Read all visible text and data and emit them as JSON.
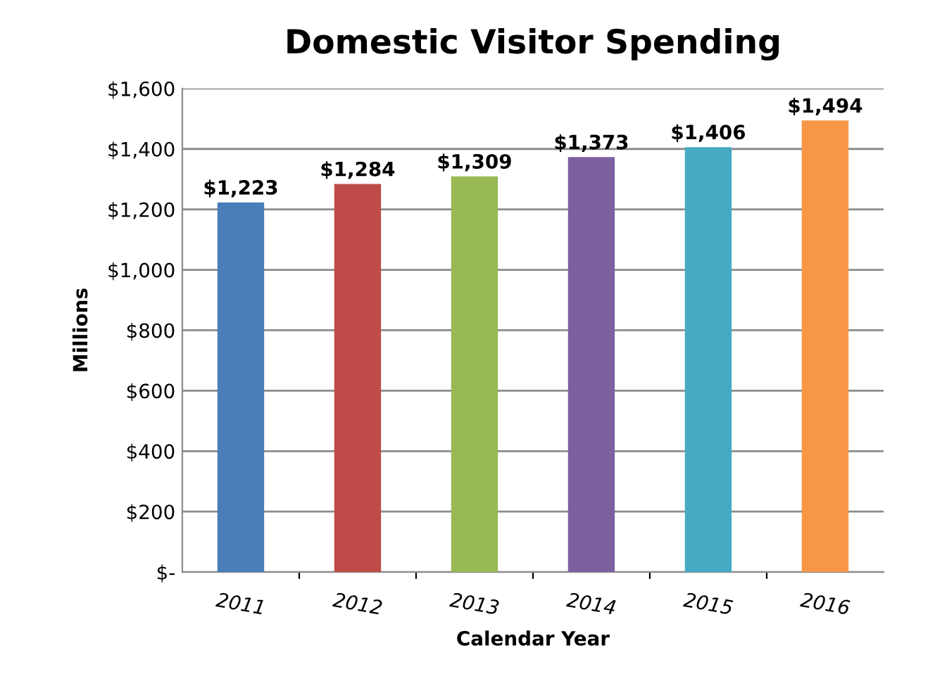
{
  "chart_data": {
    "type": "bar",
    "title": "Domestic Visitor Spending",
    "xlabel": "Calendar Year",
    "ylabel": "Millions",
    "categories": [
      "2011",
      "2012",
      "2013",
      "2014",
      "2015",
      "2016"
    ],
    "values": [
      1223,
      1284,
      1309,
      1373,
      1406,
      1494
    ],
    "colors": [
      "#4a7ebb",
      "#be4b48",
      "#98b954",
      "#7d60a0",
      "#46aac5",
      "#f79646"
    ],
    "value_labels": [
      "$1,223",
      "$1,284",
      "$1,309",
      "$1,373",
      "$1,406",
      "$1,494"
    ],
    "ylim": [
      0,
      1600
    ],
    "yticks": [
      {
        "value": 0,
        "label": "$-"
      },
      {
        "value": 200,
        "label": "$200"
      },
      {
        "value": 400,
        "label": "$400"
      },
      {
        "value": 600,
        "label": "$600"
      },
      {
        "value": 800,
        "label": "$800"
      },
      {
        "value": 1000,
        "label": "$1,000"
      },
      {
        "value": 1200,
        "label": "$1,200"
      },
      {
        "value": 1400,
        "label": "$1,400"
      },
      {
        "value": 1600,
        "label": "$1,600"
      }
    ],
    "grid": "y"
  }
}
